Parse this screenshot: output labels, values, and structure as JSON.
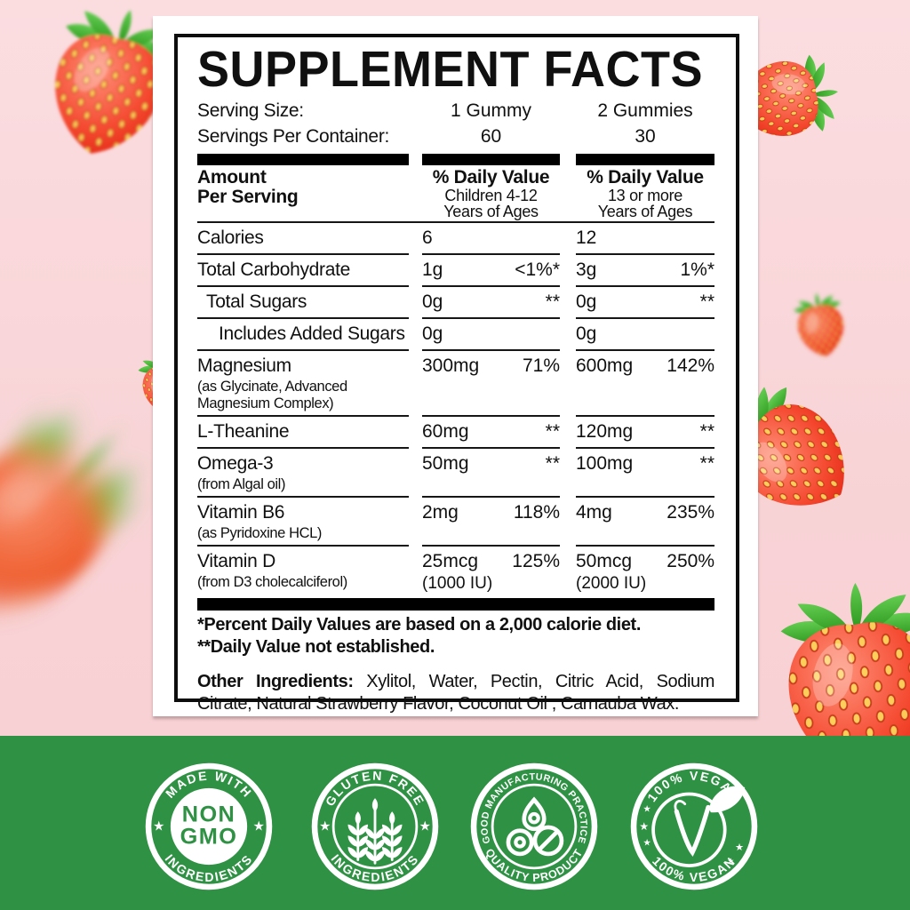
{
  "panel": {
    "title": "SUPPLEMENT FACTS",
    "serving": {
      "size_label": "Serving Size:",
      "per_container_label": "Servings Per Container:",
      "columns": [
        {
          "size": "1 Gummy",
          "servings": "60"
        },
        {
          "size": "2 Gummies",
          "servings": "30"
        }
      ]
    },
    "header": {
      "amount_line1": "Amount",
      "amount_line2": "Per Serving",
      "cols": [
        {
          "title": "% Daily Value",
          "sub1": "Children 4-12",
          "sub2": "Years of Ages"
        },
        {
          "title": "% Daily Value",
          "sub1": "13 or more",
          "sub2": "Years of Ages"
        }
      ]
    },
    "rows": [
      {
        "name": "Calories",
        "indent": 0,
        "a1": "6",
        "d1": "",
        "a2": "12",
        "d2": ""
      },
      {
        "name": "Total Carbohydrate",
        "indent": 0,
        "a1": "1g",
        "d1": "<1%*",
        "a2": "3g",
        "d2": "1%*"
      },
      {
        "name": "Total Sugars",
        "indent": 1,
        "a1": "0g",
        "d1": "**",
        "a2": "0g",
        "d2": "**"
      },
      {
        "name": "Includes Added Sugars",
        "indent": 2,
        "a1": "0g",
        "d1": "",
        "a2": "0g",
        "d2": ""
      },
      {
        "name": "Magnesium",
        "sub": "(as Glycinate, Advanced Magnesium Complex)",
        "indent": 0,
        "a1": "300mg",
        "d1": "71%",
        "a2": "600mg",
        "d2": "142%"
      },
      {
        "name": "L-Theanine",
        "indent": 0,
        "a1": "60mg",
        "d1": "**",
        "a2": "120mg",
        "d2": "**"
      },
      {
        "name": "Omega-3",
        "sub": "(from Algal oil)",
        "indent": 0,
        "a1": "50mg",
        "d1": "**",
        "a2": "100mg",
        "d2": "**"
      },
      {
        "name": "Vitamin B6",
        "sub": "(as Pyridoxine HCL)",
        "indent": 0,
        "a1": "2mg",
        "d1": "118%",
        "a2": "4mg",
        "d2": "235%"
      },
      {
        "name": "Vitamin D",
        "sub": "(from D3 cholecalciferol)",
        "indent": 0,
        "a1": "25mcg",
        "a1b": "(1000 IU)",
        "d1": "125%",
        "a2": "50mcg",
        "a2b": "(2000 IU)",
        "d2": "250%",
        "last": true
      }
    ],
    "footnotes": [
      "*Percent Daily Values are based on a 2,000 calorie diet.",
      "**Daily Value not established."
    ],
    "other": {
      "label": "Other Ingredients:",
      "text": " Xylitol, Water, Pectin, Citric Acid, Sodium Citrate, Natural Strawberry Flavor, Coconut Oil , Carnauba Wax."
    }
  },
  "badges": [
    {
      "icon": "non-gmo",
      "top": "MADE WITH",
      "bottom": "INGREDIENTS",
      "center_line1": "NON",
      "center_line2": "GMO"
    },
    {
      "icon": "wheat",
      "top": "GLUTEN FREE",
      "bottom": "INGREDIENTS"
    },
    {
      "icon": "gummies",
      "top": "GOOD MANUFACTURING PRACTICE",
      "bottom": "QUALITY PRODUCT"
    },
    {
      "icon": "vegan-v",
      "top": "100% VEGAN",
      "bottom": "100% VEGAN"
    }
  ],
  "colors": {
    "background_pink": "#f9d5d8",
    "band_green": "#2e9143",
    "badge_white": "#ffffff",
    "text_black": "#101010",
    "strawberry_red": "#e8261a",
    "leaf_green": "#3fa02c",
    "seed_yellow": "#ffd95c"
  }
}
